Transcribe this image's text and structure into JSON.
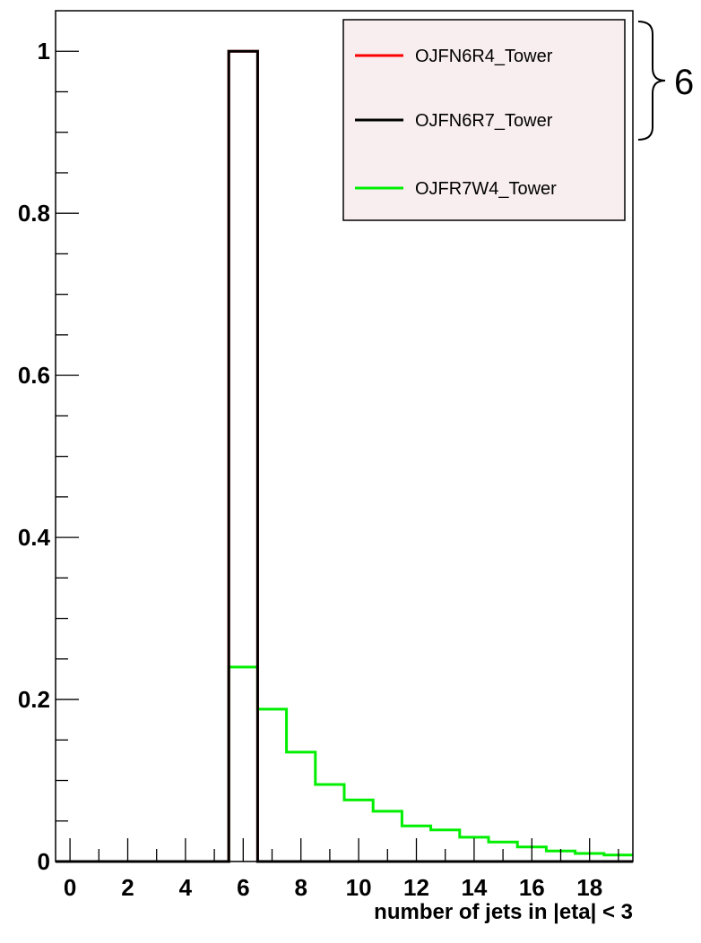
{
  "chart_data": {
    "type": "histogram",
    "xlabel": "number of jets in |eta| < 3",
    "ylabel": "",
    "xlim": [
      -0.5,
      19.5
    ],
    "ylim": [
      0,
      1.05
    ],
    "x_ticks": [
      0,
      2,
      4,
      6,
      8,
      10,
      12,
      14,
      16,
      18
    ],
    "y_ticks": [
      0,
      0.2,
      0.4,
      0.6,
      0.8,
      1
    ],
    "y_tick_labels": [
      "0",
      "0.2",
      "0.4",
      "0.6",
      "0.8",
      "1"
    ],
    "bin_width": 1,
    "bin_centers": [
      0,
      1,
      2,
      3,
      4,
      5,
      6,
      7,
      8,
      9,
      10,
      11,
      12,
      13,
      14,
      15,
      16,
      17,
      18,
      19
    ],
    "series": [
      {
        "name": "OJFN6R4_Tower",
        "color": "#ff0000",
        "values": [
          0,
          0,
          0,
          0,
          0,
          0,
          1,
          0,
          0,
          0,
          0,
          0,
          0,
          0,
          0,
          0,
          0,
          0,
          0,
          0
        ]
      },
      {
        "name": "OJFN6R7_Tower",
        "color": "#000000",
        "values": [
          0,
          0,
          0,
          0,
          0,
          0,
          1,
          0,
          0,
          0,
          0,
          0,
          0,
          0,
          0,
          0,
          0,
          0,
          0,
          0
        ]
      },
      {
        "name": "OJFR7W4_Tower",
        "color": "#00ee00",
        "values": [
          0,
          0,
          0,
          0,
          0,
          0,
          0.24,
          0.188,
          0.135,
          0.095,
          0.076,
          0.062,
          0.044,
          0.039,
          0.03,
          0.024,
          0.018,
          0.013,
          0.01,
          0.008
        ]
      }
    ],
    "legend_position": "top-right",
    "annotation": {
      "text": "6",
      "kind": "brace",
      "spans": [
        "OJFN6R4_Tower",
        "OJFN6R7_Tower"
      ]
    }
  }
}
